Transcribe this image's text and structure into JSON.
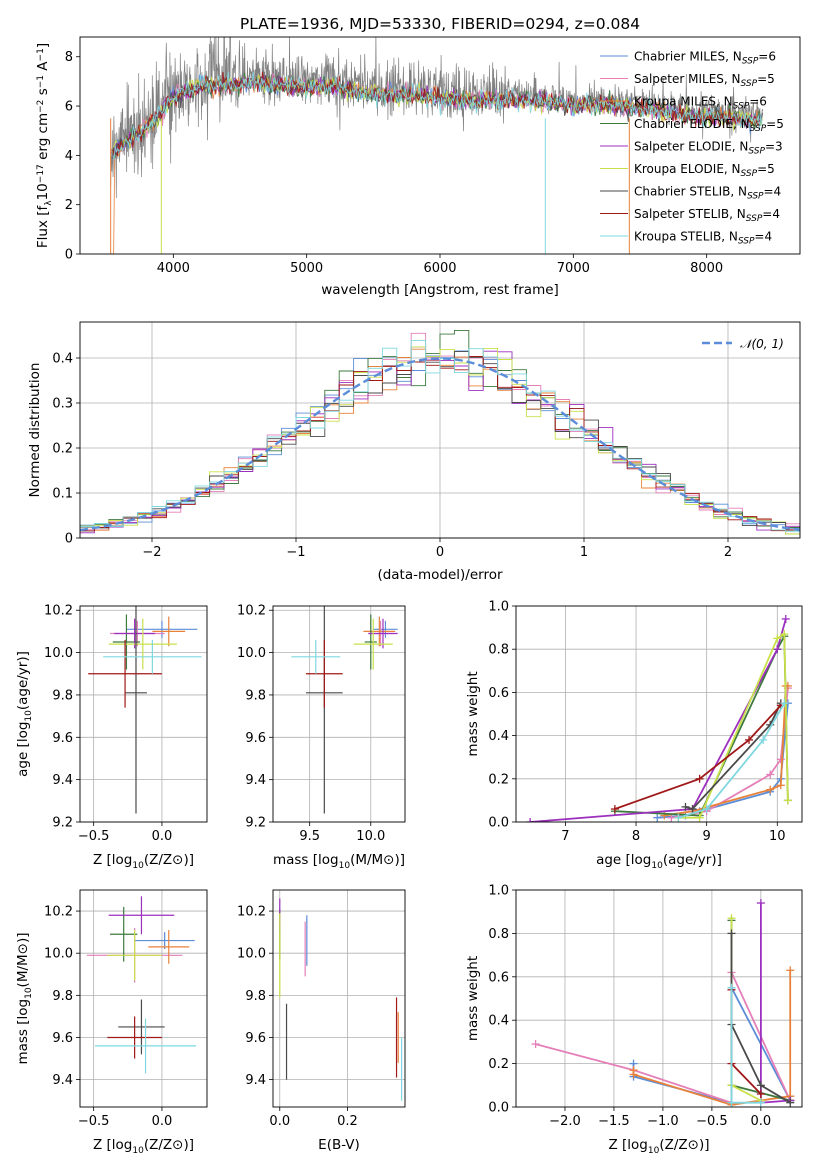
{
  "figure_title": "PLATE=1936, MJD=53330, FIBERID=0294, z=0.084",
  "models": [
    {
      "name": "Chabrier MILES, N_SSP=6",
      "prefix": "Chabrier MILES, N",
      "sub": "SSP",
      "suffix": "=6",
      "color": "#5b8dd8"
    },
    {
      "name": "Salpeter MILES, N_SSP=5",
      "prefix": "Salpeter MILES, N",
      "sub": "SSP",
      "suffix": "=5",
      "color": "#e57fb8"
    },
    {
      "name": "Kroupa MILES, N_SSP=6",
      "prefix": "Kroupa MILES, N",
      "sub": "SSP",
      "suffix": "=6",
      "color": "#e8823a"
    },
    {
      "name": "Chabrier ELODIE, N_SSP=5",
      "prefix": "Chabrier ELODIE, N",
      "sub": "SSP",
      "suffix": "=5",
      "color": "#3e7a3e"
    },
    {
      "name": "Salpeter ELODIE, N_SSP=3",
      "prefix": "Salpeter ELODIE, N",
      "sub": "SSP",
      "suffix": "=3",
      "color": "#9d2fbf"
    },
    {
      "name": "Kroupa ELODIE, N_SSP=5",
      "prefix": "Kroupa ELODIE, N",
      "sub": "SSP",
      "suffix": "=5",
      "color": "#c9e04a"
    },
    {
      "name": "Chabrier STELIB, N_SSP=4",
      "prefix": "Chabrier STELIB, N",
      "sub": "SSP",
      "suffix": "=4",
      "color": "#4a4a4a"
    },
    {
      "name": "Salpeter STELIB, N_SSP=4",
      "prefix": "Salpeter STELIB, N",
      "sub": "SSP",
      "suffix": "=4",
      "color": "#a01818"
    },
    {
      "name": "Kroupa STELIB, N_SSP=4",
      "prefix": "Kroupa STELIB, N",
      "sub": "SSP",
      "suffix": "=4",
      "color": "#7fd8e0"
    }
  ],
  "chart_data": [
    {
      "id": "spectrum",
      "type": "line",
      "xlabel": "wavelength [Angstrom, rest frame]",
      "ylabel": "Flux [f_λ 10^-17 erg cm^-2 s^-1 A^-1]",
      "xlim": [
        3300,
        8700
      ],
      "ylim": [
        0,
        8.8
      ],
      "xticks": [
        4000,
        5000,
        6000,
        7000,
        8000
      ],
      "yticks": [
        0,
        2,
        4,
        6,
        8
      ],
      "legend_position": "right",
      "data_color": "#808080",
      "model_continuum": {
        "x": [
          3530,
          3600,
          3700,
          3800,
          3900,
          4000,
          4100,
          4200,
          4400,
          4600,
          4800,
          5000,
          5200,
          5400,
          5600,
          5800,
          6000,
          6200,
          6400,
          6600,
          6800,
          7000,
          7200,
          7400,
          7600,
          7800,
          8000,
          8200,
          8400
        ],
        "y": [
          4.3,
          4.6,
          5.0,
          5.4,
          5.9,
          6.6,
          6.8,
          7.1,
          7.1,
          7.2,
          7.1,
          7.0,
          7.05,
          6.8,
          6.7,
          6.7,
          6.6,
          6.45,
          6.5,
          6.5,
          6.4,
          6.25,
          6.3,
          6.2,
          6.1,
          5.9,
          5.85,
          5.75,
          5.65
        ]
      }
    },
    {
      "id": "residuals",
      "type": "histogram",
      "xlabel": "(data-model)/error",
      "ylabel": "Normed distribution",
      "xlim": [
        -2.5,
        2.5
      ],
      "ylim": [
        0,
        0.48
      ],
      "xticks": [
        -2,
        -1,
        0,
        1,
        2
      ],
      "yticks": [
        0,
        0.1,
        0.2,
        0.3,
        0.4
      ],
      "reference_label": "𝒩(0, 1)",
      "reference_color": "#5b8dd8",
      "legend_position": "upper right"
    },
    {
      "id": "age_vs_Z",
      "type": "errorbar",
      "xlabel_main": "Z [log",
      "xlabel_rest": "(Z/Z⊙)]",
      "ylabel_main": "age  [log",
      "ylabel_rest": "(age/yr)]",
      "xlim": [
        -0.6,
        0.33
      ],
      "ylim": [
        9.2,
        10.22
      ],
      "xticks": [
        -0.5,
        0.0
      ],
      "yticks": [
        9.2,
        9.4,
        9.6,
        9.8,
        10.0,
        10.2
      ],
      "points": [
        {
          "model": 0,
          "x": 0.0,
          "xerr": 0.26,
          "y": 10.11,
          "yerr": 0.04
        },
        {
          "model": 1,
          "x": -0.18,
          "xerr": 0.2,
          "y": 10.09,
          "yerr": 0.06
        },
        {
          "model": 2,
          "x": 0.05,
          "xerr": 0.12,
          "y": 10.1,
          "yerr": 0.07
        },
        {
          "model": 3,
          "x": -0.26,
          "xerr": 0.1,
          "y": 10.05,
          "yerr": 0.13
        },
        {
          "model": 4,
          "x": -0.2,
          "xerr": 0.15,
          "y": 10.09,
          "yerr": 0.07
        },
        {
          "model": 5,
          "x": -0.14,
          "xerr": 0.25,
          "y": 10.04,
          "yerr": 0.12
        },
        {
          "model": 6,
          "x": -0.19,
          "xerr": 0.08,
          "y": 9.81,
          "yerr": 0.57
        },
        {
          "model": 7,
          "x": -0.27,
          "xerr": 0.27,
          "y": 9.9,
          "yerr": 0.16
        },
        {
          "model": 8,
          "x": -0.07,
          "xerr": 0.36,
          "y": 9.98,
          "yerr": 0.08
        }
      ]
    },
    {
      "id": "age_vs_mass",
      "type": "errorbar",
      "xlabel_main": "mass [log",
      "xlabel_rest": "(M/M⊙)]",
      "xlim": [
        9.2,
        10.28
      ],
      "ylim": [
        9.2,
        10.22
      ],
      "xticks": [
        9.5,
        10.0
      ],
      "yticks": [
        9.2,
        9.4,
        9.6,
        9.8,
        10.0,
        10.2
      ],
      "points": [
        {
          "model": 0,
          "x": 10.12,
          "xerr": 0.1,
          "y": 10.11,
          "yerr": 0.04
        },
        {
          "model": 1,
          "x": 10.08,
          "xerr": 0.1,
          "y": 10.09,
          "yerr": 0.06
        },
        {
          "model": 2,
          "x": 10.07,
          "xerr": 0.13,
          "y": 10.1,
          "yerr": 0.07
        },
        {
          "model": 3,
          "x": 10.0,
          "xerr": 0.05,
          "y": 10.05,
          "yerr": 0.13
        },
        {
          "model": 4,
          "x": 10.1,
          "xerr": 0.12,
          "y": 10.09,
          "yerr": 0.07
        },
        {
          "model": 5,
          "x": 10.02,
          "xerr": 0.16,
          "y": 10.04,
          "yerr": 0.12
        },
        {
          "model": 6,
          "x": 9.62,
          "xerr": 0.15,
          "y": 9.81,
          "yerr": 0.57
        },
        {
          "model": 7,
          "x": 9.62,
          "xerr": 0.15,
          "y": 9.9,
          "yerr": 0.16
        },
        {
          "model": 8,
          "x": 9.55,
          "xerr": 0.2,
          "y": 9.98,
          "yerr": 0.08
        }
      ]
    },
    {
      "id": "weight_vs_age",
      "type": "line",
      "xlabel_main": "age  [log",
      "xlabel_rest": "(age/yr)]",
      "ylabel": "mass weight",
      "xlim": [
        6.3,
        10.35
      ],
      "ylim": [
        0,
        1.0
      ],
      "xticks": [
        7,
        8,
        9,
        10
      ],
      "yticks": [
        0.0,
        0.2,
        0.4,
        0.6,
        0.8,
        1.0
      ],
      "lines": [
        {
          "model": 0,
          "x": [
            8.3,
            8.7,
            8.9,
            9.9,
            10.05,
            10.15
          ],
          "y": [
            0.02,
            0.03,
            0.05,
            0.14,
            0.2,
            0.55
          ]
        },
        {
          "model": 1,
          "x": [
            8.5,
            9.0,
            9.9,
            10.05,
            10.15
          ],
          "y": [
            0.02,
            0.05,
            0.22,
            0.29,
            0.62
          ]
        },
        {
          "model": 2,
          "x": [
            8.4,
            8.8,
            9.9,
            10.05,
            10.12,
            10.15
          ],
          "y": [
            0.03,
            0.05,
            0.15,
            0.17,
            0.63,
            0.63
          ]
        },
        {
          "model": 3,
          "x": [
            7.7,
            8.9,
            10.0,
            10.1,
            10.15
          ],
          "y": [
            0.05,
            0.03,
            0.8,
            0.86,
            0.1
          ]
        },
        {
          "model": 4,
          "x": [
            6.5,
            8.8,
            10.0,
            10.12
          ],
          "y": [
            0.0,
            0.06,
            0.8,
            0.94
          ]
        },
        {
          "model": 5,
          "x": [
            8.6,
            8.9,
            10.0,
            10.1,
            10.15
          ],
          "y": [
            0.02,
            0.02,
            0.85,
            0.87,
            0.1
          ]
        },
        {
          "model": 6,
          "x": [
            8.7,
            8.8,
            9.9,
            10.05
          ],
          "y": [
            0.07,
            0.06,
            0.45,
            0.55
          ]
        },
        {
          "model": 7,
          "x": [
            7.7,
            8.9,
            9.6,
            10.05
          ],
          "y": [
            0.06,
            0.2,
            0.38,
            0.54
          ]
        },
        {
          "model": 8,
          "x": [
            8.6,
            9.0,
            9.8,
            10.1
          ],
          "y": [
            0.02,
            0.06,
            0.38,
            0.55
          ]
        }
      ]
    },
    {
      "id": "mass_vs_Z",
      "type": "errorbar",
      "xlabel_main": "Z [log",
      "xlabel_rest": "(Z/Z⊙)]",
      "ylabel_main": "mass [log",
      "ylabel_rest": "(M/M⊙)]",
      "xlim": [
        -0.6,
        0.33
      ],
      "ylim": [
        9.27,
        10.3
      ],
      "xticks": [
        -0.5,
        0.0
      ],
      "yticks": [
        9.4,
        9.6,
        9.8,
        10.0,
        10.2
      ],
      "points": [
        {
          "model": 0,
          "x": 0.02,
          "xerr": 0.22,
          "y": 10.06,
          "yerr": 0.04
        },
        {
          "model": 1,
          "x": -0.2,
          "xerr": 0.35,
          "y": 9.99,
          "yerr": 0.13
        },
        {
          "model": 2,
          "x": 0.05,
          "xerr": 0.15,
          "y": 10.03,
          "yerr": 0.08
        },
        {
          "model": 3,
          "x": -0.28,
          "xerr": 0.1,
          "y": 10.09,
          "yerr": 0.13
        },
        {
          "model": 4,
          "x": -0.15,
          "xerr": 0.24,
          "y": 10.18,
          "yerr": 0.09
        },
        {
          "model": 5,
          "x": -0.2,
          "xerr": 0.2,
          "y": 9.99,
          "yerr": 0.12
        },
        {
          "model": 6,
          "x": -0.15,
          "xerr": 0.17,
          "y": 9.65,
          "yerr": 0.13
        },
        {
          "model": 7,
          "x": -0.2,
          "xerr": 0.2,
          "y": 9.6,
          "yerr": 0.1
        },
        {
          "model": 8,
          "x": -0.12,
          "xerr": 0.37,
          "y": 9.56,
          "yerr": 0.13
        }
      ]
    },
    {
      "id": "mass_vs_ebv",
      "type": "errorbar",
      "xlabel": "E(B-V)",
      "xlim": [
        -0.02,
        0.37
      ],
      "ylim": [
        9.27,
        10.3
      ],
      "xticks": [
        0.0,
        0.2
      ],
      "yticks": [
        9.4,
        9.6,
        9.8,
        10.0,
        10.2
      ],
      "points": [
        {
          "model": 0,
          "x": 0.08,
          "xerr": 0.0,
          "y": 10.06,
          "yerr": 0.12
        },
        {
          "model": 1,
          "x": 0.075,
          "xerr": 0.0,
          "y": 10.02,
          "yerr": 0.13
        },
        {
          "model": 2,
          "x": 0.35,
          "xerr": 0.0,
          "y": 9.6,
          "yerr": 0.12
        },
        {
          "model": 3,
          "x": 0.0,
          "xerr": 0.0,
          "y": 10.09,
          "yerr": 0.12
        },
        {
          "model": 4,
          "x": 0.0,
          "xerr": 0.0,
          "y": 10.18,
          "yerr": 0.08
        },
        {
          "model": 5,
          "x": 0.0,
          "xerr": 0.0,
          "y": 9.99,
          "yerr": 0.2
        },
        {
          "model": 6,
          "x": 0.02,
          "xerr": 0.0,
          "y": 9.58,
          "yerr": 0.18
        },
        {
          "model": 7,
          "x": 0.345,
          "xerr": 0.0,
          "y": 9.6,
          "yerr": 0.19
        },
        {
          "model": 8,
          "x": 0.36,
          "xerr": 0.0,
          "y": 9.45,
          "yerr": 0.15
        }
      ]
    },
    {
      "id": "weight_vs_Z",
      "type": "line",
      "xlabel_main": "Z [log",
      "xlabel_rest": "(Z/Z⊙)]",
      "ylabel": "mass weight",
      "xlim": [
        -2.5,
        0.42
      ],
      "ylim": [
        0,
        1.0
      ],
      "xticks": [
        -2.0,
        -1.5,
        -1.0,
        -0.5,
        0.0
      ],
      "yticks": [
        0.0,
        0.2,
        0.4,
        0.6,
        0.8,
        1.0
      ],
      "lines": [
        {
          "model": 0,
          "x": [
            -1.3,
            -1.3,
            -0.3,
            -0.3,
            0.3,
            0.3
          ],
          "y": [
            0.2,
            0.14,
            0.02,
            0.55,
            0.03,
            0.05
          ]
        },
        {
          "model": 1,
          "x": [
            -2.3,
            -1.3,
            -0.3,
            -0.3,
            0.3
          ],
          "y": [
            0.29,
            0.17,
            0.02,
            0.62,
            0.03
          ]
        },
        {
          "model": 2,
          "x": [
            -1.3,
            -1.3,
            -0.3,
            0.3,
            0.3,
            0.3
          ],
          "y": [
            0.17,
            0.15,
            0.01,
            0.05,
            0.63,
            0.03
          ]
        },
        {
          "model": 3,
          "x": [
            -0.3,
            -0.3,
            0.3
          ],
          "y": [
            0.86,
            0.1,
            0.03
          ]
        },
        {
          "model": 4,
          "x": [
            0.0,
            0.0,
            0.3
          ],
          "y": [
            0.94,
            0.02,
            0.03
          ]
        },
        {
          "model": 5,
          "x": [
            -0.3,
            -0.3,
            0.0
          ],
          "y": [
            0.87,
            0.1,
            0.03
          ]
        },
        {
          "model": 6,
          "x": [
            -0.3,
            -0.3,
            0.0,
            0.3
          ],
          "y": [
            0.8,
            0.38,
            0.1,
            0.02
          ]
        },
        {
          "model": 7,
          "x": [
            -0.3,
            -0.3,
            0.0
          ],
          "y": [
            0.54,
            0.2,
            0.06
          ]
        },
        {
          "model": 8,
          "x": [
            -0.3,
            -0.3,
            0.0
          ],
          "y": [
            0.55,
            0.02,
            0.02
          ]
        }
      ]
    }
  ]
}
